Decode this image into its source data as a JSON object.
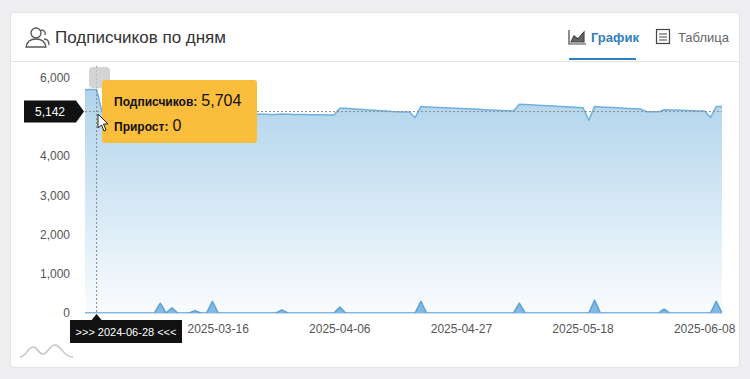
{
  "chart_data": {
    "type": "area",
    "title": "Подписчиков по дням",
    "tabs": [
      "График",
      "Таблица"
    ],
    "categories": [
      null,
      null,
      null,
      null,
      null,
      null,
      null,
      null,
      null,
      null,
      null,
      null,
      null,
      null,
      null,
      null,
      null,
      null,
      null,
      null,
      null,
      null,
      null,
      "2025-03-16",
      null,
      null,
      null,
      null,
      null,
      null,
      null,
      null,
      null,
      null,
      null,
      null,
      null,
      null,
      null,
      null,
      null,
      null,
      null,
      null,
      "2025-04-06",
      null,
      null,
      null,
      null,
      null,
      null,
      null,
      null,
      null,
      null,
      null,
      null,
      null,
      null,
      null,
      null,
      null,
      null,
      null,
      null,
      "2025-04-27",
      null,
      null,
      null,
      null,
      null,
      null,
      null,
      null,
      null,
      null,
      null,
      null,
      null,
      null,
      null,
      null,
      null,
      null,
      null,
      null,
      "2025-05-18",
      null,
      null,
      null,
      null,
      null,
      null,
      null,
      null,
      null,
      null,
      null,
      null,
      null,
      null,
      null,
      null,
      null,
      null,
      null,
      null,
      "2025-06-08",
      null,
      null,
      null
    ],
    "series": [
      {
        "type": "area",
        "color": "#6fb0dd",
        "values": [
          5700,
          5704,
          5704,
          5100,
          5099,
          5098,
          5097,
          5096,
          5095,
          5094,
          5093,
          5092,
          5091,
          5090,
          5089,
          5088,
          5087,
          5086,
          5085,
          5084,
          5083,
          5082,
          5081,
          5080,
          5079,
          5078,
          5077,
          5076,
          5075,
          5074,
          5073,
          5072,
          5071,
          5070,
          5080,
          5075,
          5070,
          5068,
          5066,
          5064,
          5062,
          5060,
          5058,
          5056,
          5230,
          5225,
          5215,
          5205,
          5195,
          5185,
          5175,
          5165,
          5155,
          5145,
          5140,
          5135,
          5130,
          4990,
          5270,
          5262,
          5255,
          5248,
          5241,
          5234,
          5227,
          5220,
          5213,
          5206,
          5199,
          5192,
          5185,
          5178,
          5171,
          5164,
          5157,
          5330,
          5322,
          5314,
          5306,
          5298,
          5290,
          5282,
          5274,
          5266,
          5258,
          5250,
          5242,
          4920,
          5270,
          5262,
          5254,
          5246,
          5238,
          5230,
          5222,
          5214,
          5206,
          5140,
          5138,
          5136,
          5190,
          5185,
          5180,
          5175,
          5170,
          5165,
          5160,
          5155,
          4990,
          5270,
          5270
        ]
      },
      {
        "type": "area",
        "color": "#5aa3d8",
        "values": [
          0,
          0,
          0,
          0,
          0,
          0,
          0,
          0,
          0,
          0,
          0,
          0,
          0,
          250,
          0,
          130,
          0,
          0,
          0,
          60,
          0,
          0,
          300,
          0,
          0,
          0,
          0,
          0,
          0,
          0,
          0,
          0,
          0,
          0,
          80,
          0,
          0,
          0,
          0,
          0,
          0,
          0,
          0,
          0,
          150,
          0,
          0,
          0,
          0,
          0,
          0,
          0,
          0,
          0,
          0,
          0,
          0,
          0,
          300,
          0,
          0,
          0,
          0,
          0,
          0,
          0,
          0,
          0,
          0,
          0,
          0,
          0,
          0,
          0,
          0,
          250,
          0,
          0,
          0,
          0,
          0,
          0,
          0,
          0,
          0,
          0,
          0,
          0,
          330,
          0,
          0,
          0,
          0,
          0,
          0,
          0,
          0,
          0,
          0,
          0,
          100,
          0,
          0,
          0,
          0,
          0,
          0,
          0,
          0,
          300,
          0
        ]
      }
    ],
    "ylim": [
      0,
      6000
    ],
    "yticks": [
      0,
      {
        "value": 1000,
        "label": "1,000"
      },
      {
        "value": 2000,
        "label": "2,000"
      },
      {
        "value": 3000,
        "label": "3,000"
      },
      {
        "value": 4000,
        "label": "4,000"
      },
      {
        "value": 6000,
        "label": "6,000"
      }
    ],
    "grid": false,
    "crosshair": {
      "x_label": ">>> 2024-06-28 <<<",
      "y_value": 5142,
      "y_label": "5,142"
    },
    "tooltip": {
      "items": [
        {
          "label": "Подписчиков:",
          "value": 5704,
          "value_label": "5,704"
        },
        {
          "label": "Прирост:",
          "value": 0
        }
      ]
    }
  }
}
